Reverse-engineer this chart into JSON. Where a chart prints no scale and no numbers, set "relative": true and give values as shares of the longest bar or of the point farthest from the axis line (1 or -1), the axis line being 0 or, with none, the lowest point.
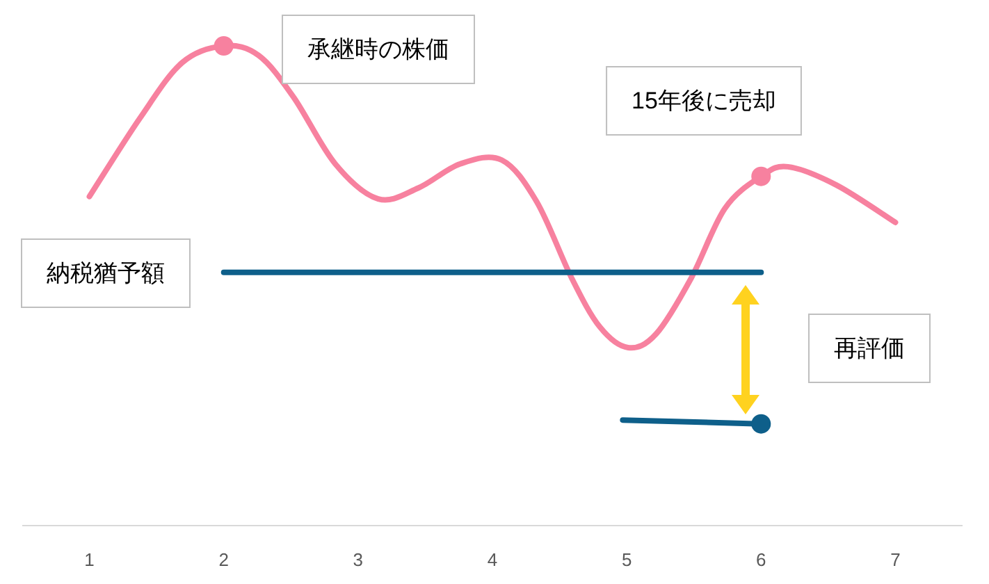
{
  "chart_data": {
    "type": "line",
    "relative": true,
    "xlim": [
      0.5,
      7.5
    ],
    "xticks": [
      1,
      2,
      3,
      4,
      5,
      6,
      7
    ],
    "tick_labels": "x",
    "grid": false,
    "series": [
      {
        "type": "line",
        "color": "#f7819f",
        "marker": "none",
        "x": [
          1,
          1.375,
          1.69,
          2,
          2.26,
          2.52,
          2.83,
          3.15,
          3.45,
          3.76,
          4.07,
          4.33,
          4.59,
          4.8,
          5.01,
          5.22,
          5.48,
          5.73,
          6,
          6.2,
          6.56,
          7
        ],
        "values": [
          0.686,
          0.849,
          0.965,
          1,
          0.98,
          0.893,
          0.754,
          0.681,
          0.704,
          0.754,
          0.762,
          0.675,
          0.516,
          0.414,
          0.371,
          0.4,
          0.516,
          0.661,
          0.728,
          0.748,
          0.71,
          0.632
        ]
      },
      {
        "type": "scatter",
        "color": "#f7819f",
        "marker": "circle",
        "x": [
          2,
          6
        ],
        "values": [
          1,
          0.728
        ]
      },
      {
        "type": "line",
        "color": "#0e5f8a",
        "marker": "none",
        "x": [
          2,
          6
        ],
        "values": [
          0.528,
          0.528
        ]
      },
      {
        "type": "line",
        "color": "#0e5f8a",
        "marker": "none",
        "x": [
          4.97,
          6
        ],
        "values": [
          0.22,
          0.212
        ]
      },
      {
        "type": "scatter",
        "color": "#0e5f8a",
        "marker": "circle",
        "x": [
          6
        ],
        "values": [
          0.212
        ]
      }
    ],
    "annotations": [
      "承継時の株価",
      "15年後に売却",
      "納税猶予額",
      "再評価"
    ]
  }
}
